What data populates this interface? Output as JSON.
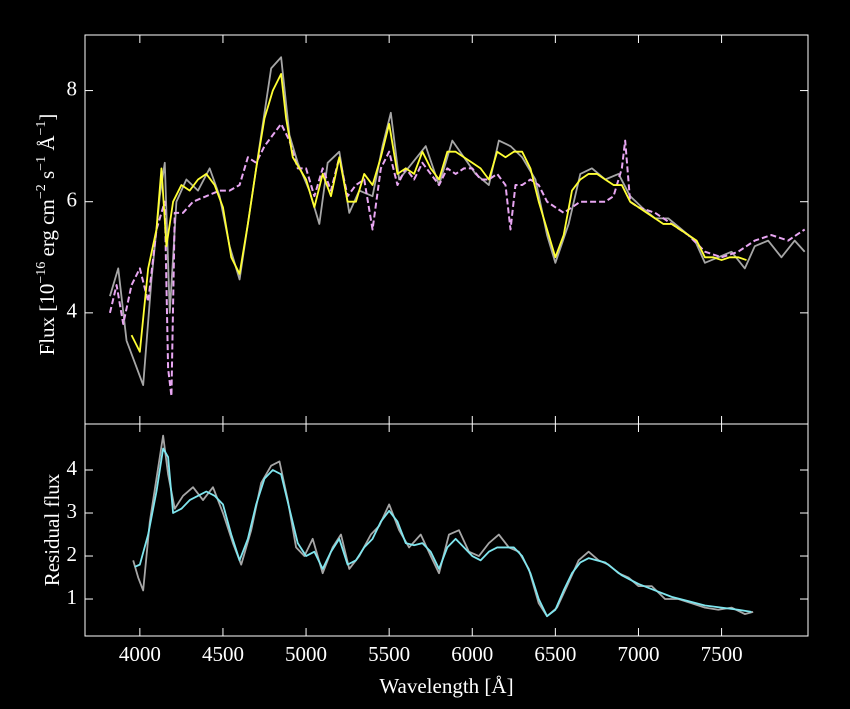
{
  "chart_data": [
    {
      "type": "line",
      "ylabel_parts": [
        "Flux [10",
        "−16",
        " erg cm",
        "−2",
        " s",
        "−1",
        " Å",
        "−1",
        "]"
      ],
      "xlim": [
        3670,
        8020
      ],
      "xticks": [
        4000,
        4500,
        5000,
        5500,
        6000,
        6500,
        7000,
        7500
      ],
      "ylim": [
        2.0,
        9.0
      ],
      "yticks": [
        4,
        6,
        8
      ],
      "series": [
        {
          "color": "#a6a6a6",
          "style": "solid",
          "x": [
            3820,
            3870,
            3920,
            3970,
            4020,
            4070,
            4120,
            4150,
            4180,
            4220,
            4280,
            4350,
            4420,
            4480,
            4540,
            4600,
            4660,
            4720,
            4790,
            4850,
            4900,
            4950,
            5020,
            5080,
            5130,
            5200,
            5260,
            5320,
            5400,
            5460,
            5510,
            5560,
            5640,
            5720,
            5800,
            5880,
            5950,
            6020,
            6100,
            6160,
            6230,
            6300,
            6380,
            6450,
            6500,
            6580,
            6650,
            6720,
            6800,
            6880,
            6950,
            7020,
            7100,
            7180,
            7260,
            7340,
            7400,
            7480,
            7560,
            7640,
            7700,
            7780,
            7860,
            7940,
            8000
          ],
          "values": [
            4.3,
            4.8,
            3.5,
            3.1,
            2.7,
            4.6,
            6.1,
            6.7,
            4.0,
            6.0,
            6.4,
            6.2,
            6.6,
            6.1,
            5.2,
            4.6,
            5.8,
            7.0,
            8.4,
            8.6,
            7.2,
            6.7,
            6.2,
            5.6,
            6.7,
            6.9,
            5.8,
            6.2,
            6.1,
            7.0,
            7.6,
            6.4,
            6.7,
            7.0,
            6.3,
            7.1,
            6.8,
            6.5,
            6.3,
            7.1,
            7.0,
            6.8,
            6.4,
            5.4,
            4.9,
            5.6,
            6.5,
            6.6,
            6.4,
            6.5,
            6.1,
            5.9,
            5.7,
            5.7,
            5.5,
            5.3,
            4.9,
            5.0,
            5.1,
            4.8,
            5.2,
            5.3,
            5.0,
            5.3,
            5.1
          ]
        },
        {
          "color": "#e8a6f2",
          "style": "dashed",
          "x": [
            3820,
            3860,
            3900,
            3950,
            4000,
            4050,
            4100,
            4150,
            4170,
            4190,
            4210,
            4260,
            4320,
            4400,
            4480,
            4540,
            4600,
            4650,
            4700,
            4750,
            4800,
            4850,
            4900,
            4950,
            5000,
            5050,
            5100,
            5150,
            5200,
            5250,
            5300,
            5350,
            5400,
            5450,
            5500,
            5550,
            5600,
            5650,
            5700,
            5750,
            5800,
            5850,
            5900,
            5950,
            6000,
            6050,
            6100,
            6150,
            6200,
            6230,
            6260,
            6300,
            6350,
            6400,
            6450,
            6500,
            6550,
            6600,
            6650,
            6700,
            6750,
            6800,
            6850,
            6900,
            6920,
            6950,
            7000,
            7100,
            7200,
            7300,
            7400,
            7500,
            7600,
            7700,
            7800,
            7900,
            8000
          ],
          "values": [
            4.0,
            4.5,
            3.8,
            4.5,
            4.8,
            4.2,
            5.5,
            6.0,
            3.0,
            2.5,
            5.8,
            5.8,
            6.0,
            6.1,
            6.2,
            6.2,
            6.3,
            6.8,
            6.7,
            7.0,
            7.2,
            7.4,
            7.1,
            6.6,
            6.6,
            6.1,
            6.6,
            6.2,
            6.8,
            6.1,
            6.3,
            6.4,
            5.5,
            6.6,
            6.9,
            6.3,
            6.6,
            6.4,
            6.7,
            6.5,
            6.3,
            6.6,
            6.5,
            6.6,
            6.6,
            6.4,
            6.4,
            6.5,
            6.3,
            5.5,
            6.3,
            6.3,
            6.4,
            6.3,
            6.0,
            5.9,
            5.8,
            5.9,
            6.0,
            6.0,
            6.0,
            6.0,
            6.1,
            6.6,
            7.1,
            6.0,
            5.9,
            5.8,
            5.6,
            5.4,
            5.1,
            5.0,
            5.1,
            5.3,
            5.4,
            5.3,
            5.5
          ]
        },
        {
          "color": "#ffff33",
          "style": "solid",
          "x": [
            3950,
            4000,
            4050,
            4100,
            4130,
            4160,
            4200,
            4250,
            4300,
            4350,
            4400,
            4450,
            4500,
            4550,
            4600,
            4650,
            4700,
            4750,
            4800,
            4850,
            4880,
            4920,
            4960,
            5000,
            5050,
            5100,
            5150,
            5200,
            5250,
            5300,
            5350,
            5400,
            5450,
            5500,
            5550,
            5600,
            5650,
            5700,
            5750,
            5800,
            5850,
            5900,
            5950,
            6000,
            6050,
            6100,
            6150,
            6200,
            6250,
            6300,
            6350,
            6400,
            6450,
            6500,
            6550,
            6600,
            6650,
            6700,
            6750,
            6800,
            6850,
            6900,
            6950,
            7000,
            7050,
            7100,
            7150,
            7200,
            7250,
            7300,
            7350,
            7400,
            7450,
            7500,
            7550,
            7600,
            7650
          ],
          "values": [
            3.6,
            3.3,
            4.8,
            5.5,
            6.6,
            5.2,
            6.0,
            6.3,
            6.2,
            6.4,
            6.5,
            6.3,
            5.9,
            5.0,
            4.7,
            5.6,
            6.6,
            7.5,
            8.0,
            8.3,
            7.5,
            6.8,
            6.6,
            6.4,
            5.9,
            6.5,
            6.1,
            6.8,
            6.0,
            6.0,
            6.5,
            6.3,
            6.8,
            7.4,
            6.5,
            6.6,
            6.5,
            6.9,
            6.6,
            6.4,
            6.9,
            6.9,
            6.8,
            6.7,
            6.6,
            6.4,
            6.9,
            6.8,
            6.9,
            6.9,
            6.6,
            6.0,
            5.5,
            5.0,
            5.4,
            6.2,
            6.4,
            6.5,
            6.5,
            6.4,
            6.3,
            6.3,
            6.0,
            5.9,
            5.8,
            5.7,
            5.6,
            5.6,
            5.5,
            5.4,
            5.3,
            5.0,
            5.0,
            4.95,
            5.0,
            5.0,
            4.95
          ]
        }
      ]
    },
    {
      "type": "line",
      "xlabel": "Wavelength [Å]",
      "ylabel": "Residual flux",
      "xlim": [
        3670,
        8020
      ],
      "xticks": [
        4000,
        4500,
        5000,
        5500,
        6000,
        6500,
        7000,
        7500
      ],
      "ylim": [
        0.14,
        5.07
      ],
      "yticks": [
        1,
        2,
        3,
        4
      ],
      "series": [
        {
          "color": "#a6a6a6",
          "style": "solid",
          "x": [
            3960,
            3990,
            4020,
            4060,
            4100,
            4140,
            4170,
            4210,
            4260,
            4320,
            4380,
            4440,
            4500,
            4560,
            4610,
            4670,
            4730,
            4790,
            4840,
            4890,
            4940,
            4990,
            5040,
            5100,
            5160,
            5210,
            5260,
            5320,
            5390,
            5440,
            5500,
            5560,
            5620,
            5690,
            5750,
            5800,
            5860,
            5920,
            5980,
            6040,
            6100,
            6160,
            6220,
            6280,
            6340,
            6400,
            6450,
            6510,
            6570,
            6640,
            6700,
            6760,
            6820,
            6880,
            6940,
            7000,
            7080,
            7160,
            7240,
            7320,
            7400,
            7480,
            7560,
            7640,
            7690
          ],
          "values": [
            1.9,
            1.5,
            1.2,
            2.8,
            3.8,
            4.8,
            3.9,
            3.1,
            3.4,
            3.6,
            3.3,
            3.6,
            3.0,
            2.3,
            1.8,
            2.6,
            3.7,
            4.1,
            4.2,
            3.3,
            2.2,
            2.0,
            2.4,
            1.6,
            2.2,
            2.5,
            1.7,
            2.0,
            2.5,
            2.7,
            3.2,
            2.6,
            2.2,
            2.5,
            2.0,
            1.6,
            2.5,
            2.6,
            2.1,
            2.0,
            2.3,
            2.5,
            2.2,
            2.1,
            1.7,
            0.9,
            0.6,
            0.8,
            1.3,
            1.9,
            2.1,
            1.9,
            1.8,
            1.6,
            1.5,
            1.3,
            1.3,
            1.0,
            1.0,
            0.9,
            0.8,
            0.75,
            0.8,
            0.65,
            0.7
          ]
        },
        {
          "color": "#80e6ef",
          "style": "solid",
          "x": [
            3970,
            4000,
            4050,
            4100,
            4140,
            4170,
            4200,
            4250,
            4300,
            4350,
            4400,
            4450,
            4500,
            4550,
            4600,
            4650,
            4700,
            4750,
            4800,
            4850,
            4900,
            4950,
            5000,
            5050,
            5100,
            5150,
            5200,
            5250,
            5300,
            5350,
            5400,
            5450,
            5500,
            5550,
            5600,
            5650,
            5700,
            5750,
            5800,
            5850,
            5900,
            5950,
            6000,
            6050,
            6100,
            6150,
            6200,
            6250,
            6300,
            6350,
            6400,
            6450,
            6500,
            6550,
            6600,
            6650,
            6700,
            6750,
            6800,
            6850,
            6900,
            6950,
            7000,
            7100,
            7200,
            7300,
            7400,
            7500,
            7600,
            7680
          ],
          "values": [
            1.75,
            1.8,
            2.5,
            3.5,
            4.5,
            4.3,
            3.0,
            3.1,
            3.3,
            3.4,
            3.5,
            3.4,
            3.2,
            2.5,
            1.9,
            2.4,
            3.2,
            3.8,
            4.0,
            3.9,
            3.1,
            2.3,
            2.0,
            2.1,
            1.7,
            2.1,
            2.4,
            1.8,
            1.9,
            2.2,
            2.4,
            2.8,
            3.05,
            2.8,
            2.3,
            2.25,
            2.3,
            2.1,
            1.7,
            2.2,
            2.4,
            2.2,
            2.0,
            1.9,
            2.1,
            2.2,
            2.2,
            2.2,
            2.0,
            1.6,
            1.0,
            0.6,
            0.75,
            1.2,
            1.6,
            1.85,
            1.95,
            1.9,
            1.85,
            1.7,
            1.55,
            1.45,
            1.35,
            1.2,
            1.05,
            0.95,
            0.85,
            0.8,
            0.75,
            0.7
          ]
        }
      ]
    }
  ]
}
